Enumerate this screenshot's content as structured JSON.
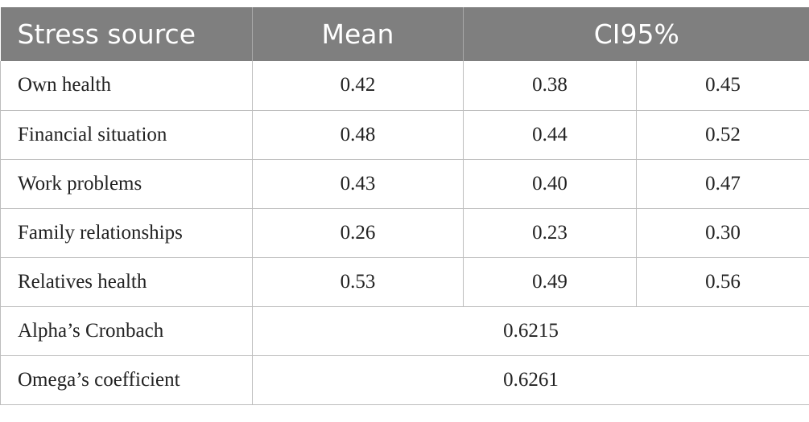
{
  "table": {
    "headers": {
      "source": "Stress source",
      "mean": "Mean",
      "ci": "CI95%"
    },
    "rows": [
      {
        "label": "Own health",
        "mean": "0.42",
        "lower": "0.38",
        "upper": "0.45"
      },
      {
        "label": "Financial situation",
        "mean": "0.48",
        "lower": "0.44",
        "upper": "0.52"
      },
      {
        "label": "Work problems",
        "mean": "0.43",
        "lower": "0.40",
        "upper": "0.47"
      },
      {
        "label": "Family relationships",
        "mean": "0.26",
        "lower": "0.23",
        "upper": "0.30"
      },
      {
        "label": "Relatives health",
        "mean": "0.53",
        "lower": "0.49",
        "upper": "0.56"
      }
    ],
    "summary": [
      {
        "label": "Alpha’s Cronbach",
        "value": "0.6215"
      },
      {
        "label": "Omega’s coefficient",
        "value": "0.6261"
      }
    ]
  }
}
